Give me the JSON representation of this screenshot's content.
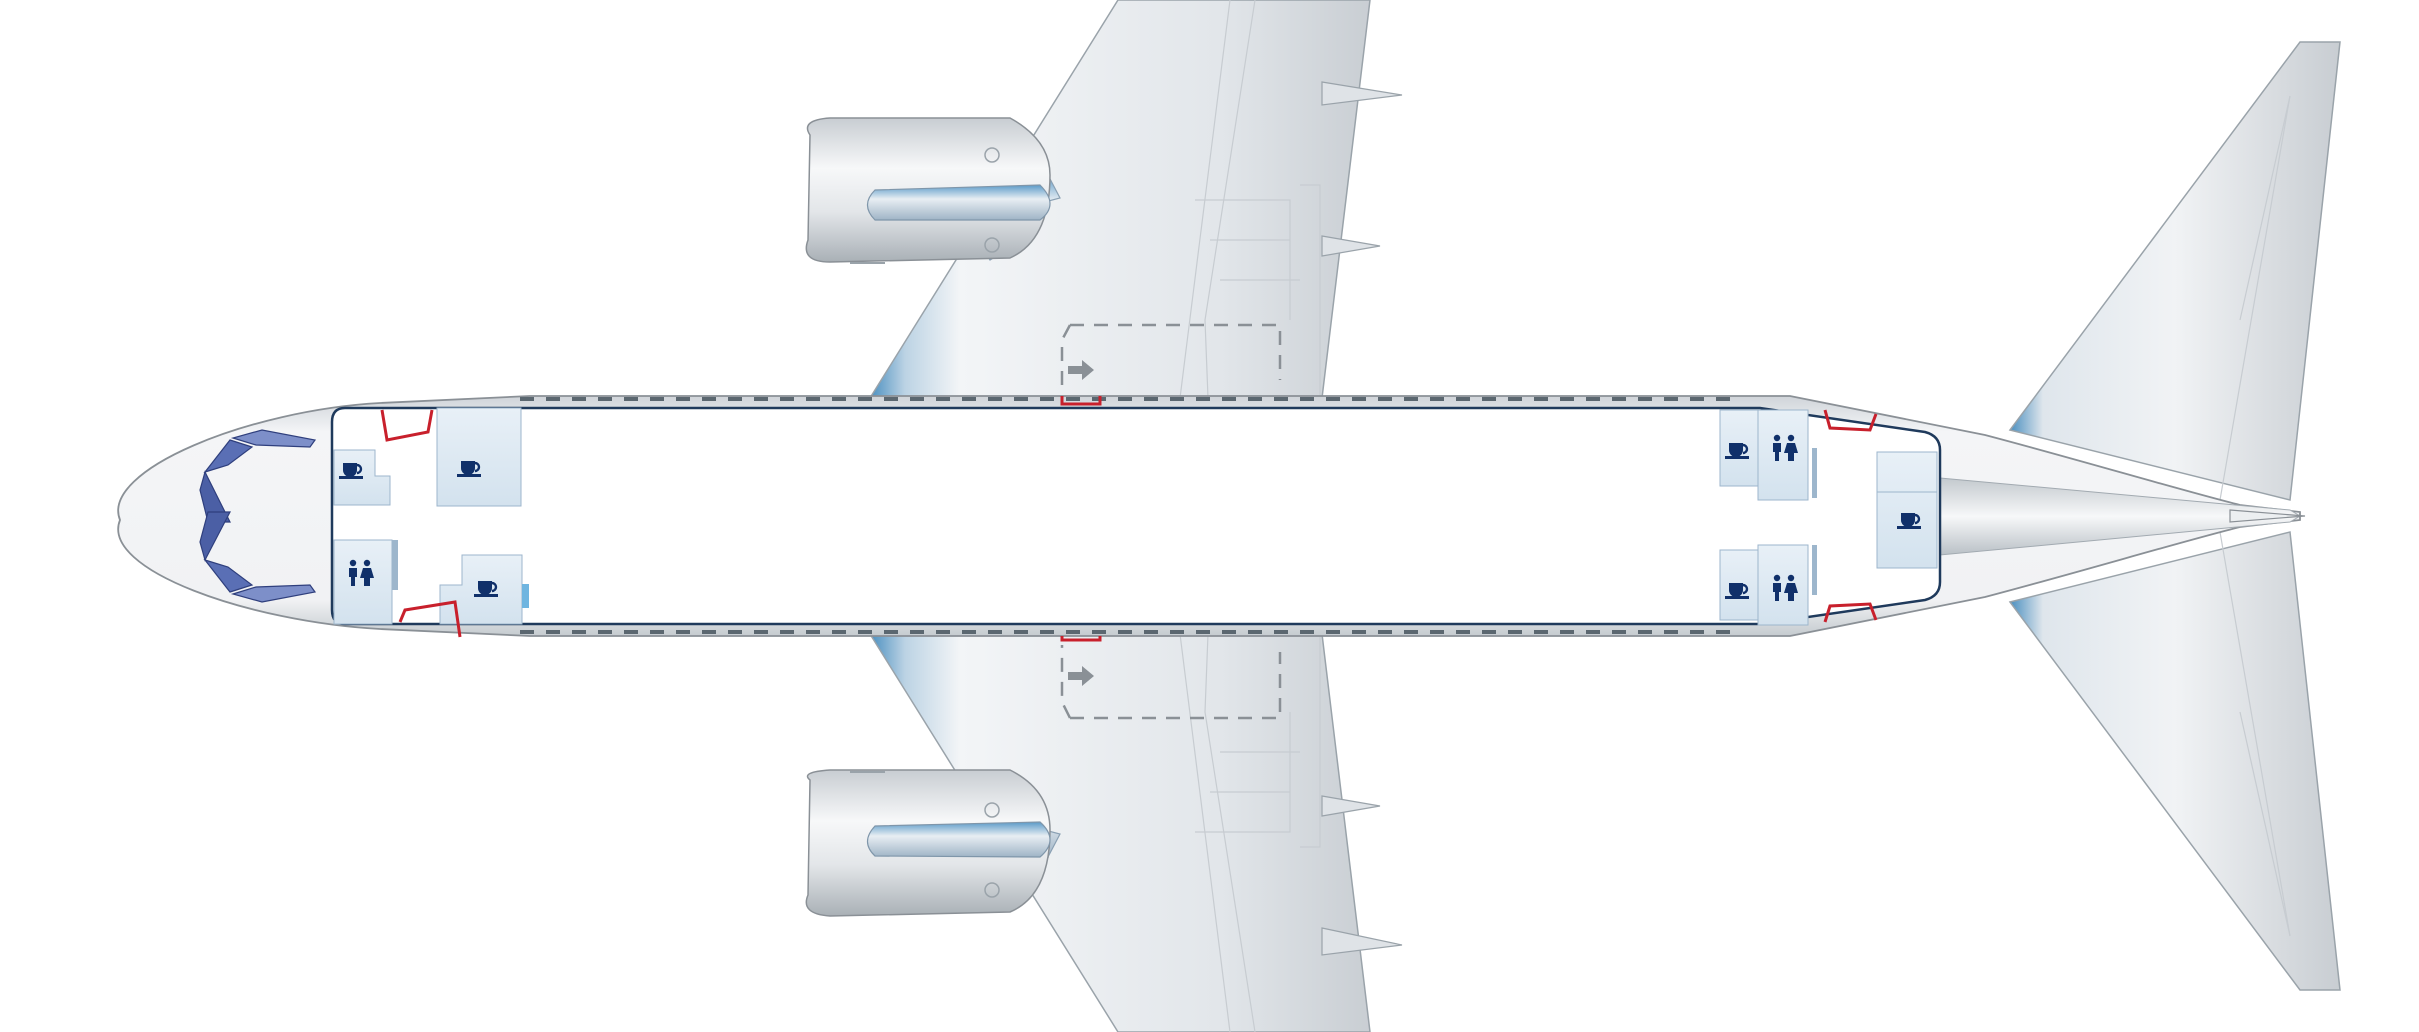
{
  "colors": {
    "background": "#ffffff",
    "fuselage_fill": "#f2f4f6",
    "skin_light": "#f6f7f8",
    "skin_mid": "#d9dde1",
    "skin_dark": "#aeb5bb",
    "accent_blue": "#4a8fc0",
    "outline": "#9aa3aa",
    "cabin_outline": "#1f3a5c",
    "galley_fill": "#dde9f3",
    "exit_red": "#c8202c",
    "window_blue": "#5a6fb5",
    "icon_navy": "#10306a",
    "panel_line": "#c7ccd1",
    "dash": "#8a9096"
  },
  "icons": {
    "galley": "coffee-cup-icon",
    "lavatory": "lavatory-icon",
    "exit": "emergency-exit-icon",
    "window_exit_arrow": "over-wing-exit-arrow-icon"
  },
  "cabin": {
    "galleys": [
      {
        "id": "galley-forward-left"
      },
      {
        "id": "galley-forward-center"
      },
      {
        "id": "galley-forward-right"
      },
      {
        "id": "galley-aft-left"
      },
      {
        "id": "galley-aft-right"
      },
      {
        "id": "galley-aft-center"
      }
    ],
    "lavatories": [
      {
        "id": "lavatory-forward"
      },
      {
        "id": "lavatory-aft-left"
      },
      {
        "id": "lavatory-aft-right"
      }
    ],
    "exits": [
      {
        "id": "exit-forward-left"
      },
      {
        "id": "exit-forward-right"
      },
      {
        "id": "exit-overwing-left"
      },
      {
        "id": "exit-overwing-right"
      },
      {
        "id": "exit-aft-left"
      },
      {
        "id": "exit-aft-right"
      }
    ]
  }
}
